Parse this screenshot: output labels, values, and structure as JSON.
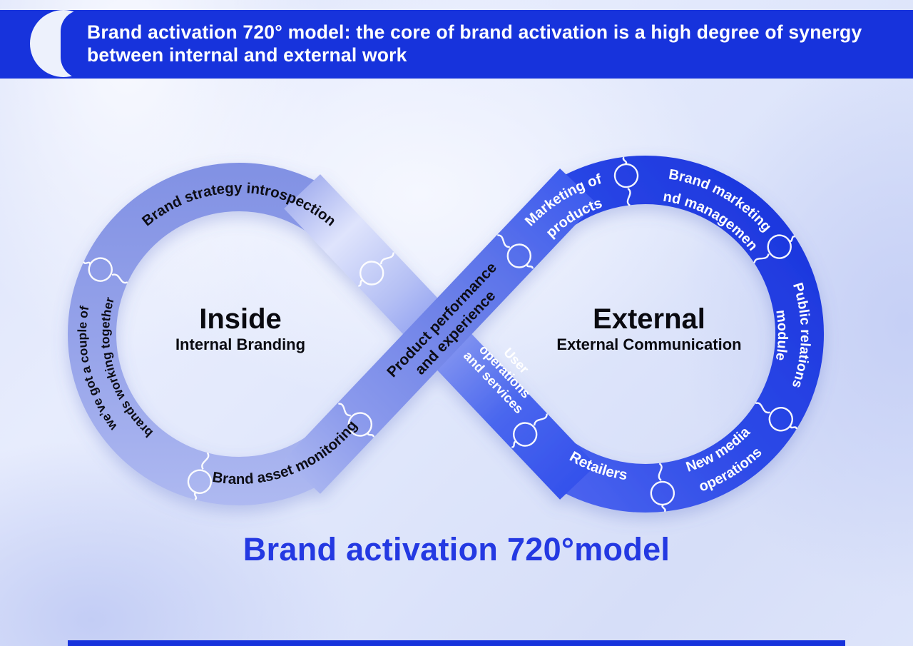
{
  "header": {
    "title": "Brand activation 720° model: the core of brand activation is a high degree of synergy between internal and external work"
  },
  "footer": {
    "title": "Brand activation 720°model"
  },
  "colors": {
    "header_bg": "#1733DC",
    "left_ring": "#8e9ce7",
    "right_ring": "#2745e6",
    "cross_band": "#6e82e8",
    "footer_title": "#2439E2",
    "label_dark": "#0d0d15",
    "label_light": "#ffffff"
  },
  "loops": {
    "inside": {
      "title": "Inside",
      "subtitle": "Internal Branding",
      "top_label": "Brand strategy introspection",
      "side_label_line1": "we’ve got a couple of",
      "side_label_line2": "brands working together",
      "bottom_label": "Brand asset monitoring"
    },
    "external": {
      "title": "External",
      "subtitle": "External Communication",
      "marketing_line1": "Marketing of",
      "marketing_line2": "products",
      "brand_mkt_line1": "Brand marketing",
      "brand_mkt_line2": "and management",
      "pr_line1": "Public relations",
      "pr_line2": "module",
      "new_media_line1": "New media",
      "new_media_line2": "operations",
      "retailers": "Retailers"
    }
  },
  "cross": {
    "performance_line1": "Product performance",
    "performance_line2": "and experience",
    "user_ops_line1": "User",
    "user_ops_line2": "operations",
    "user_ops_line3": "and services"
  }
}
